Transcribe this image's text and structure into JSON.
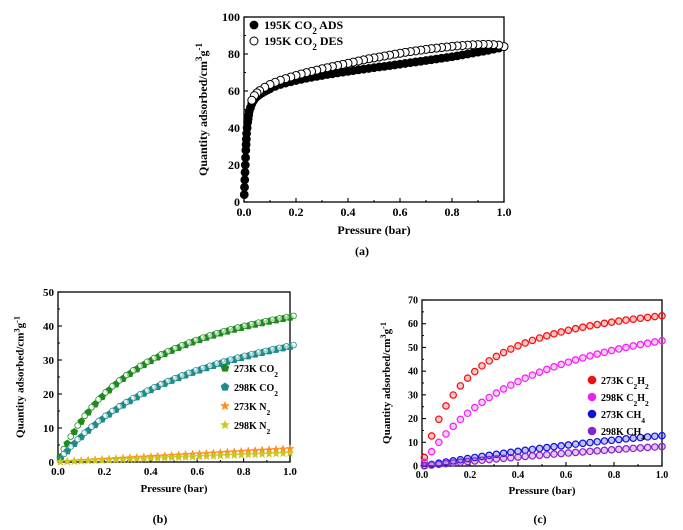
{
  "chart_data": [
    {
      "panel": "a",
      "caption": "(a)",
      "type": "scatter",
      "xlabel": "Pressure (bar)",
      "ylabel": "Quantity adsorbed/cm<sup>3</sup>g<sup>-1</sup>",
      "ylabel_main": "Quantity adsorbed/cm",
      "ylabel_sup1": "3",
      "ylabel_mid": "g",
      "ylabel_sup2": "-1",
      "xlim": [
        0,
        1.0
      ],
      "ylim": [
        0,
        100
      ],
      "xticks": [
        "0.0",
        "0.2",
        "0.4",
        "0.6",
        "0.8",
        "1.0"
      ],
      "yticks": [
        "0",
        "20",
        "40",
        "60",
        "80",
        "100"
      ],
      "legend_position": "top-left",
      "series": [
        {
          "name_parts": [
            "195K CO",
            "2",
            " ADS"
          ],
          "color": "#000000",
          "marker": "circle-filled",
          "x": [
            0.001,
            0.002,
            0.003,
            0.004,
            0.005,
            0.006,
            0.007,
            0.008,
            0.009,
            0.01,
            0.012,
            0.014,
            0.016,
            0.018,
            0.02,
            0.025,
            0.03,
            0.035,
            0.04,
            0.05,
            0.06,
            0.07,
            0.08,
            0.09,
            0.1,
            0.12,
            0.14,
            0.16,
            0.18,
            0.2,
            0.22,
            0.24,
            0.26,
            0.28,
            0.3,
            0.32,
            0.34,
            0.36,
            0.38,
            0.4,
            0.42,
            0.44,
            0.46,
            0.48,
            0.5,
            0.52,
            0.54,
            0.56,
            0.58,
            0.6,
            0.62,
            0.64,
            0.66,
            0.68,
            0.7,
            0.72,
            0.74,
            0.76,
            0.78,
            0.8,
            0.82,
            0.84,
            0.86,
            0.88,
            0.9,
            0.92,
            0.94,
            0.96,
            0.98,
            1.0
          ],
          "y": [
            4,
            8,
            12,
            16,
            20,
            24,
            28,
            31,
            34,
            37,
            40,
            43,
            45,
            47,
            49,
            51,
            53,
            54.5,
            55.5,
            57,
            58,
            59,
            59.8,
            60.5,
            61.2,
            62.5,
            63.5,
            64.3,
            65,
            65.7,
            66.3,
            66.9,
            67.4,
            67.9,
            68.4,
            68.9,
            69.3,
            69.8,
            70.2,
            70.6,
            71,
            71.4,
            71.8,
            72.2,
            72.6,
            73,
            73.3,
            73.7,
            74.1,
            74.5,
            74.9,
            75.3,
            75.7,
            76.1,
            76.5,
            76.9,
            77.3,
            77.7,
            78.1,
            78.5,
            79,
            79.5,
            80,
            80.5,
            81,
            81.5,
            82,
            82.6,
            83.2,
            84
          ]
        },
        {
          "name_parts": [
            "195K CO",
            "2",
            " DES"
          ],
          "color": "#000000",
          "marker": "circle-open",
          "x": [
            1.0,
            0.98,
            0.96,
            0.94,
            0.92,
            0.9,
            0.88,
            0.86,
            0.84,
            0.82,
            0.8,
            0.78,
            0.76,
            0.74,
            0.72,
            0.7,
            0.68,
            0.66,
            0.64,
            0.62,
            0.6,
            0.58,
            0.56,
            0.54,
            0.52,
            0.5,
            0.48,
            0.46,
            0.44,
            0.42,
            0.4,
            0.38,
            0.36,
            0.34,
            0.32,
            0.3,
            0.28,
            0.26,
            0.24,
            0.22,
            0.2,
            0.18,
            0.16,
            0.14,
            0.12,
            0.1,
            0.08,
            0.06,
            0.05,
            0.04,
            0.03
          ],
          "y": [
            84,
            84.8,
            85.1,
            85.2,
            85.2,
            85.1,
            85,
            84.8,
            84.6,
            84.4,
            84.1,
            83.8,
            83.5,
            83.2,
            82.9,
            82.5,
            82.1,
            81.7,
            81.3,
            80.9,
            80.4,
            79.9,
            79.4,
            78.9,
            78.4,
            77.9,
            77.4,
            76.8,
            76.2,
            75.6,
            75,
            74.4,
            73.8,
            73.2,
            72.6,
            72,
            71.3,
            70.6,
            69.9,
            69.2,
            68.4,
            67.6,
            66.7,
            65.8,
            64.7,
            63.5,
            62,
            60.2,
            59,
            57.5,
            55
          ]
        }
      ]
    },
    {
      "panel": "b",
      "caption": "(b)",
      "type": "scatter",
      "xlabel": "Pressure (bar)",
      "ylabel_main": "Quantity adsorbed/cm",
      "ylabel_sup1": "3",
      "ylabel_mid": "g",
      "ylabel_sup2": "-1",
      "xlim": [
        0,
        1.0
      ],
      "ylim": [
        0,
        50
      ],
      "xticks": [
        "0.0",
        "0.2",
        "0.4",
        "0.6",
        "0.8",
        "1.0"
      ],
      "yticks": [
        "0",
        "10",
        "20",
        "30",
        "40",
        "50"
      ],
      "legend_position": "center-right",
      "series": [
        {
          "name_parts": [
            "273K CO",
            "2",
            ""
          ],
          "color": "#1e8a1e",
          "marker": "pentagon",
          "qmax": 59.5,
          "K": 2.5,
          "scale": 1.0
        },
        {
          "name_parts": [
            "298K CO",
            "2",
            ""
          ],
          "color": "#1e8a8a",
          "marker": "pentagon",
          "qmax": 56.5,
          "K": 1.5,
          "scale": 1.0
        },
        {
          "name_parts": [
            "273K N",
            "2",
            ""
          ],
          "color": "#ff8c1a",
          "marker": "star",
          "slope": 3.9
        },
        {
          "name_parts": [
            "298K N",
            "2",
            ""
          ],
          "color": "#c8c81e",
          "marker": "star",
          "slope": 2.6
        }
      ]
    },
    {
      "panel": "c",
      "caption": "(c)",
      "type": "scatter",
      "xlabel": "Pressure (bar)",
      "ylabel_main": "Quantity adsorbed/cm",
      "ylabel_sup1": "3",
      "ylabel_mid": "g",
      "ylabel_sup2": "-1",
      "xlim": [
        0,
        1.0
      ],
      "ylim": [
        0,
        70
      ],
      "xticks": [
        "0.0",
        "0.2",
        "0.4",
        "0.6",
        "0.8",
        "1.0"
      ],
      "yticks": [
        "0",
        "10",
        "20",
        "30",
        "40",
        "50",
        "60",
        "70"
      ],
      "legend_position": "center-right",
      "series": [
        {
          "name_parts": [
            "273K C",
            "2",
            "H",
            "2",
            ""
          ],
          "color": "#ee1111",
          "marker": "circle",
          "qmax": 76,
          "K": 5.0
        },
        {
          "name_parts": [
            "298K C",
            "2",
            "H",
            "2",
            ""
          ],
          "color": "#ee22ee",
          "marker": "circle",
          "qmax": 78,
          "K": 2.1
        },
        {
          "name_parts": [
            "273K CH",
            "4",
            ""
          ],
          "color": "#1111dd",
          "marker": "circle",
          "slope": 12.8,
          "curv": 0.35
        },
        {
          "name_parts": [
            "298K CH",
            "4",
            ""
          ],
          "color": "#8822cc",
          "marker": "circle",
          "slope": 8.2,
          "curv": 0.25
        }
      ]
    }
  ]
}
